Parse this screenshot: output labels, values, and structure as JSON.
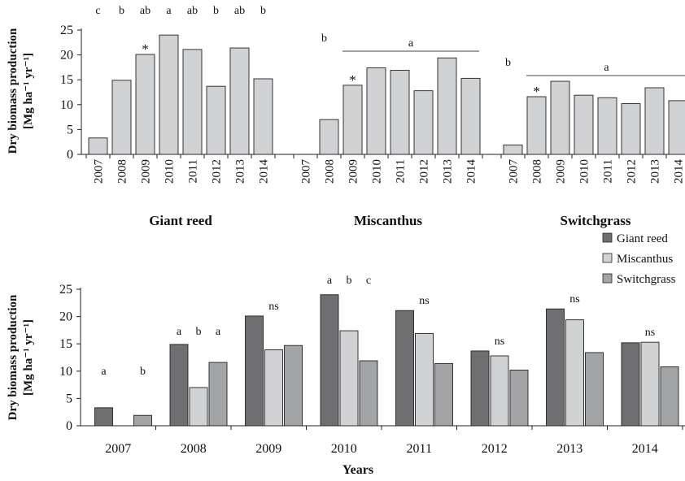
{
  "colors": {
    "giant_reed": "#6f6f71",
    "miscanthus": "#d1d2d4",
    "switchgrass": "#a3a4a6",
    "top_bars": "#d1d2d4"
  },
  "chart_data": [
    {
      "type": "bar",
      "ylabel_line1": "Dry biomass production",
      "ylabel_line2": "[Mg ha⁻¹ yr⁻¹]",
      "ylim": [
        0,
        25
      ],
      "yticks": [
        0,
        5,
        10,
        15,
        20,
        25
      ],
      "grid": false,
      "groups": [
        {
          "name": "Giant reed",
          "categories": [
            "2007",
            "2008",
            "2009",
            "2010",
            "2011",
            "2012",
            "2013",
            "2014"
          ],
          "values": [
            3.3,
            14.9,
            20.1,
            24.0,
            21.1,
            13.7,
            21.4,
            15.2
          ],
          "letters": [
            "c",
            "b",
            "ab",
            "a",
            "ab",
            "b",
            "ab",
            "b"
          ],
          "asterisk_index": 2
        },
        {
          "name": "Miscanthus",
          "categories": [
            "2007",
            "2008",
            "2009",
            "2010",
            "2011",
            "2012",
            "2013",
            "2014"
          ],
          "values": [
            0,
            7.0,
            13.9,
            17.4,
            16.9,
            12.8,
            19.4,
            15.3
          ],
          "bracket": {
            "from_index": 2,
            "to_index": 7,
            "label": "a",
            "start_letter": "b",
            "start_index": 1
          },
          "asterisk_index": 2
        },
        {
          "name": "Switchgrass",
          "categories": [
            "2007",
            "2008",
            "2009",
            "2010",
            "2011",
            "2012",
            "2013",
            "2014"
          ],
          "values": [
            1.9,
            11.6,
            14.7,
            11.9,
            11.4,
            10.2,
            13.4,
            10.8
          ],
          "bracket": {
            "from_index": 1,
            "to_index": 7,
            "label": "a",
            "start_letter": "b",
            "start_index": 0
          },
          "asterisk_index": 1
        }
      ]
    },
    {
      "type": "bar",
      "xlabel": "Years",
      "ylabel_line1": "Dry biomass production",
      "ylabel_line2": "[Mg ha⁻¹ yr⁻¹]",
      "ylim": [
        0,
        25
      ],
      "yticks": [
        0,
        5,
        10,
        15,
        20,
        25
      ],
      "grid": false,
      "legend_position": "top-right",
      "categories": [
        "2007",
        "2008",
        "2009",
        "2010",
        "2011",
        "2012",
        "2013",
        "2014"
      ],
      "series": [
        {
          "name": "Giant reed",
          "values": [
            3.3,
            14.9,
            20.1,
            24.0,
            21.1,
            13.7,
            21.4,
            15.2
          ]
        },
        {
          "name": "Miscanthus",
          "values": [
            0,
            7.0,
            13.9,
            17.4,
            16.9,
            12.8,
            19.4,
            15.3
          ]
        },
        {
          "name": "Switchgrass",
          "values": [
            1.9,
            11.6,
            14.7,
            11.9,
            11.4,
            10.2,
            13.4,
            10.8
          ]
        }
      ],
      "annotations": [
        {
          "type": "letters",
          "labels": [
            "a",
            "",
            "b"
          ]
        },
        {
          "type": "letters",
          "labels": [
            "a",
            "b",
            "a"
          ]
        },
        {
          "type": "ns",
          "label": "ns"
        },
        {
          "type": "letters",
          "labels": [
            "a",
            "b",
            "c"
          ]
        },
        {
          "type": "ns",
          "label": "ns"
        },
        {
          "type": "ns",
          "label": "ns"
        },
        {
          "type": "ns",
          "label": "ns"
        },
        {
          "type": "ns",
          "label": "ns"
        }
      ]
    }
  ]
}
